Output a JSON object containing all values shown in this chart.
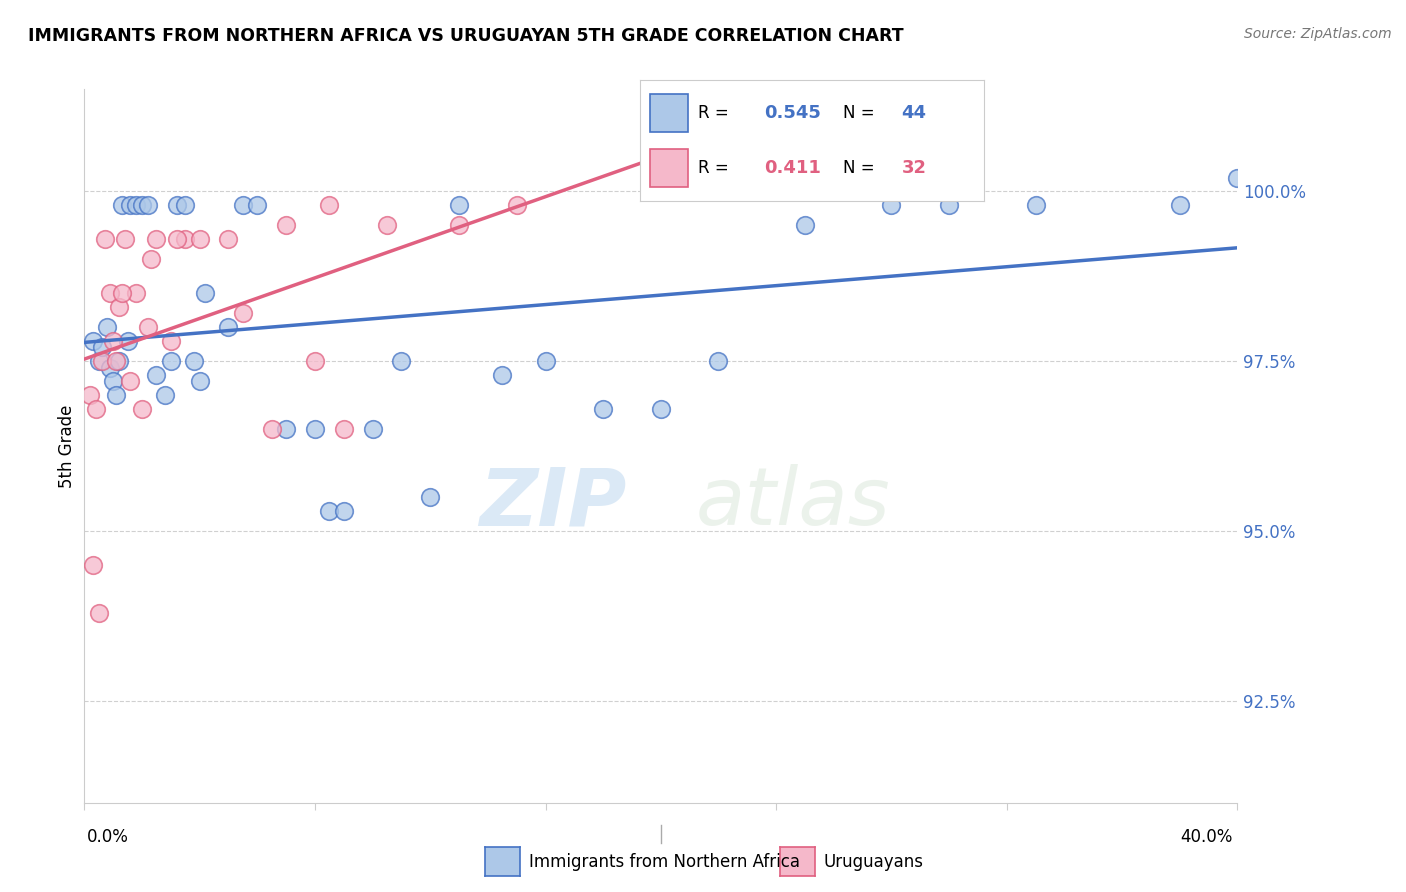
{
  "title": "IMMIGRANTS FROM NORTHERN AFRICA VS URUGUAYAN 5TH GRADE CORRELATION CHART",
  "source": "Source: ZipAtlas.com",
  "ylabel": "5th Grade",
  "ytick_values": [
    92.5,
    95.0,
    97.5,
    100.0
  ],
  "xlim": [
    0.0,
    40.0
  ],
  "ylim": [
    91.0,
    101.5
  ],
  "blue_label": "Immigrants from Northern Africa",
  "pink_label": "Uruguayans",
  "blue_R": "0.545",
  "blue_N": "44",
  "pink_R": "0.411",
  "pink_N": "32",
  "blue_color": "#adc8e8",
  "pink_color": "#f5b8ca",
  "blue_line_color": "#4472c4",
  "pink_line_color": "#e06080",
  "blue_points_x": [
    0.3,
    0.5,
    0.6,
    0.8,
    0.9,
    1.0,
    1.1,
    1.2,
    1.3,
    1.5,
    1.6,
    1.8,
    2.0,
    2.2,
    2.5,
    2.8,
    3.0,
    3.2,
    3.5,
    3.8,
    4.0,
    4.2,
    5.0,
    5.5,
    6.0,
    7.0,
    8.0,
    8.5,
    9.0,
    10.0,
    11.0,
    12.0,
    13.0,
    14.5,
    16.0,
    18.0,
    20.0,
    22.0,
    25.0,
    28.0,
    30.0,
    33.0,
    38.0,
    40.0
  ],
  "blue_points_y": [
    97.8,
    97.5,
    97.7,
    98.0,
    97.4,
    97.2,
    97.0,
    97.5,
    99.8,
    97.8,
    99.8,
    99.8,
    99.8,
    99.8,
    97.3,
    97.0,
    97.5,
    99.8,
    99.8,
    97.5,
    97.2,
    98.5,
    98.0,
    99.8,
    99.8,
    96.5,
    96.5,
    95.3,
    95.3,
    96.5,
    97.5,
    95.5,
    99.8,
    97.3,
    97.5,
    96.8,
    96.8,
    97.5,
    99.5,
    99.8,
    99.8,
    99.8,
    99.8,
    100.2
  ],
  "pink_points_x": [
    0.2,
    0.4,
    0.6,
    0.7,
    0.9,
    1.0,
    1.2,
    1.4,
    1.6,
    1.8,
    2.0,
    2.2,
    2.5,
    3.0,
    3.5,
    4.0,
    5.0,
    5.5,
    7.0,
    8.0,
    8.5,
    9.0,
    10.5,
    13.0,
    15.0,
    0.3,
    0.5,
    1.1,
    1.3,
    2.3,
    3.2,
    6.5
  ],
  "pink_points_y": [
    97.0,
    96.8,
    97.5,
    99.3,
    98.5,
    97.8,
    98.3,
    99.3,
    97.2,
    98.5,
    96.8,
    98.0,
    99.3,
    97.8,
    99.3,
    99.3,
    99.3,
    98.2,
    99.5,
    97.5,
    99.8,
    96.5,
    99.5,
    99.5,
    99.8,
    94.5,
    93.8,
    97.5,
    98.5,
    99.0,
    99.3,
    96.5
  ],
  "watermark_zip": "ZIP",
  "watermark_atlas": "atlas",
  "background_color": "#ffffff",
  "grid_color": "#d0d0d0"
}
